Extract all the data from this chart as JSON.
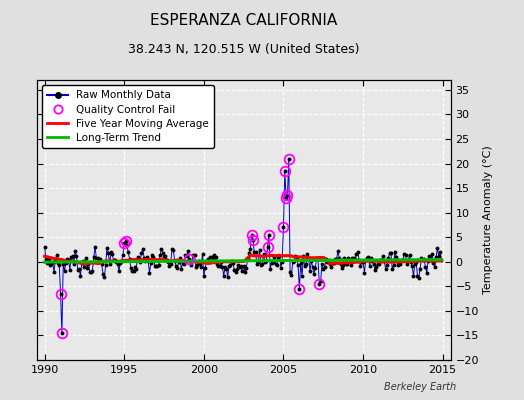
{
  "title": "ESPERANZA CALIFORNIA",
  "subtitle": "38.243 N, 120.515 W (United States)",
  "ylabel": "Temperature Anomaly (°C)",
  "watermark": "Berkeley Earth",
  "xlim": [
    1989.5,
    2015.5
  ],
  "ylim": [
    -20,
    37
  ],
  "yticks": [
    -20,
    -15,
    -10,
    -5,
    0,
    5,
    10,
    15,
    20,
    25,
    30,
    35
  ],
  "xticks": [
    1990,
    1995,
    2000,
    2005,
    2010,
    2015
  ],
  "bg_color": "#e0e0e0",
  "plot_bg_color": "#e8e8e8",
  "line_color": "#0000cc",
  "marker_color": "#000000",
  "qc_color": "#ff00ff",
  "moving_avg_color": "#ff0000",
  "trend_color": "#00bb00",
  "title_fontsize": 11,
  "subtitle_fontsize": 9,
  "tick_labelsize": 8,
  "ylabel_fontsize": 8
}
